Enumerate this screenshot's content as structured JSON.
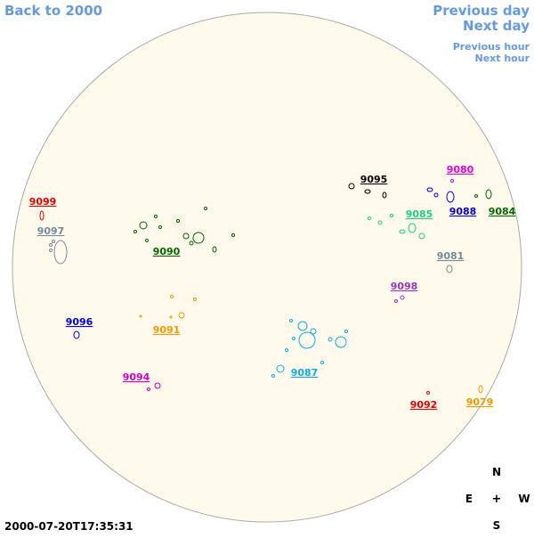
{
  "nav": {
    "back": "Back to 2000",
    "previous_day": "Previous day",
    "next_day": "Next day",
    "previous_hour": "Previous hour",
    "next_hour": "Next hour"
  },
  "timestamp": "2000-07-20T17:35:31",
  "compass": {
    "north": "N",
    "east": "E",
    "center": "+",
    "west": "W",
    "south": "S"
  },
  "regions": [
    {
      "label": "9099",
      "color": "#dd0000"
    },
    {
      "label": "9097",
      "color": "#778899"
    },
    {
      "label": "9090",
      "color": "#006600"
    },
    {
      "label": "9096",
      "color": "#0000cc"
    },
    {
      "label": "9091",
      "color": "#ee9900"
    },
    {
      "label": "9094",
      "color": "#cc00cc"
    },
    {
      "label": "9087",
      "color": "#11aadd"
    },
    {
      "label": "9095",
      "color": "#000000"
    },
    {
      "label": "9080",
      "color": "#dd00dd"
    },
    {
      "label": "9088",
      "color": "#0000dd"
    },
    {
      "label": "9085",
      "color": "#22cc88"
    },
    {
      "label": "9084",
      "color": "#006600"
    },
    {
      "label": "9081",
      "color": "#778899"
    },
    {
      "label": "9098",
      "color": "#9933bb"
    },
    {
      "label": "9092",
      "color": "#dd0000"
    },
    {
      "label": "9079",
      "color": "#ee9900"
    }
  ]
}
